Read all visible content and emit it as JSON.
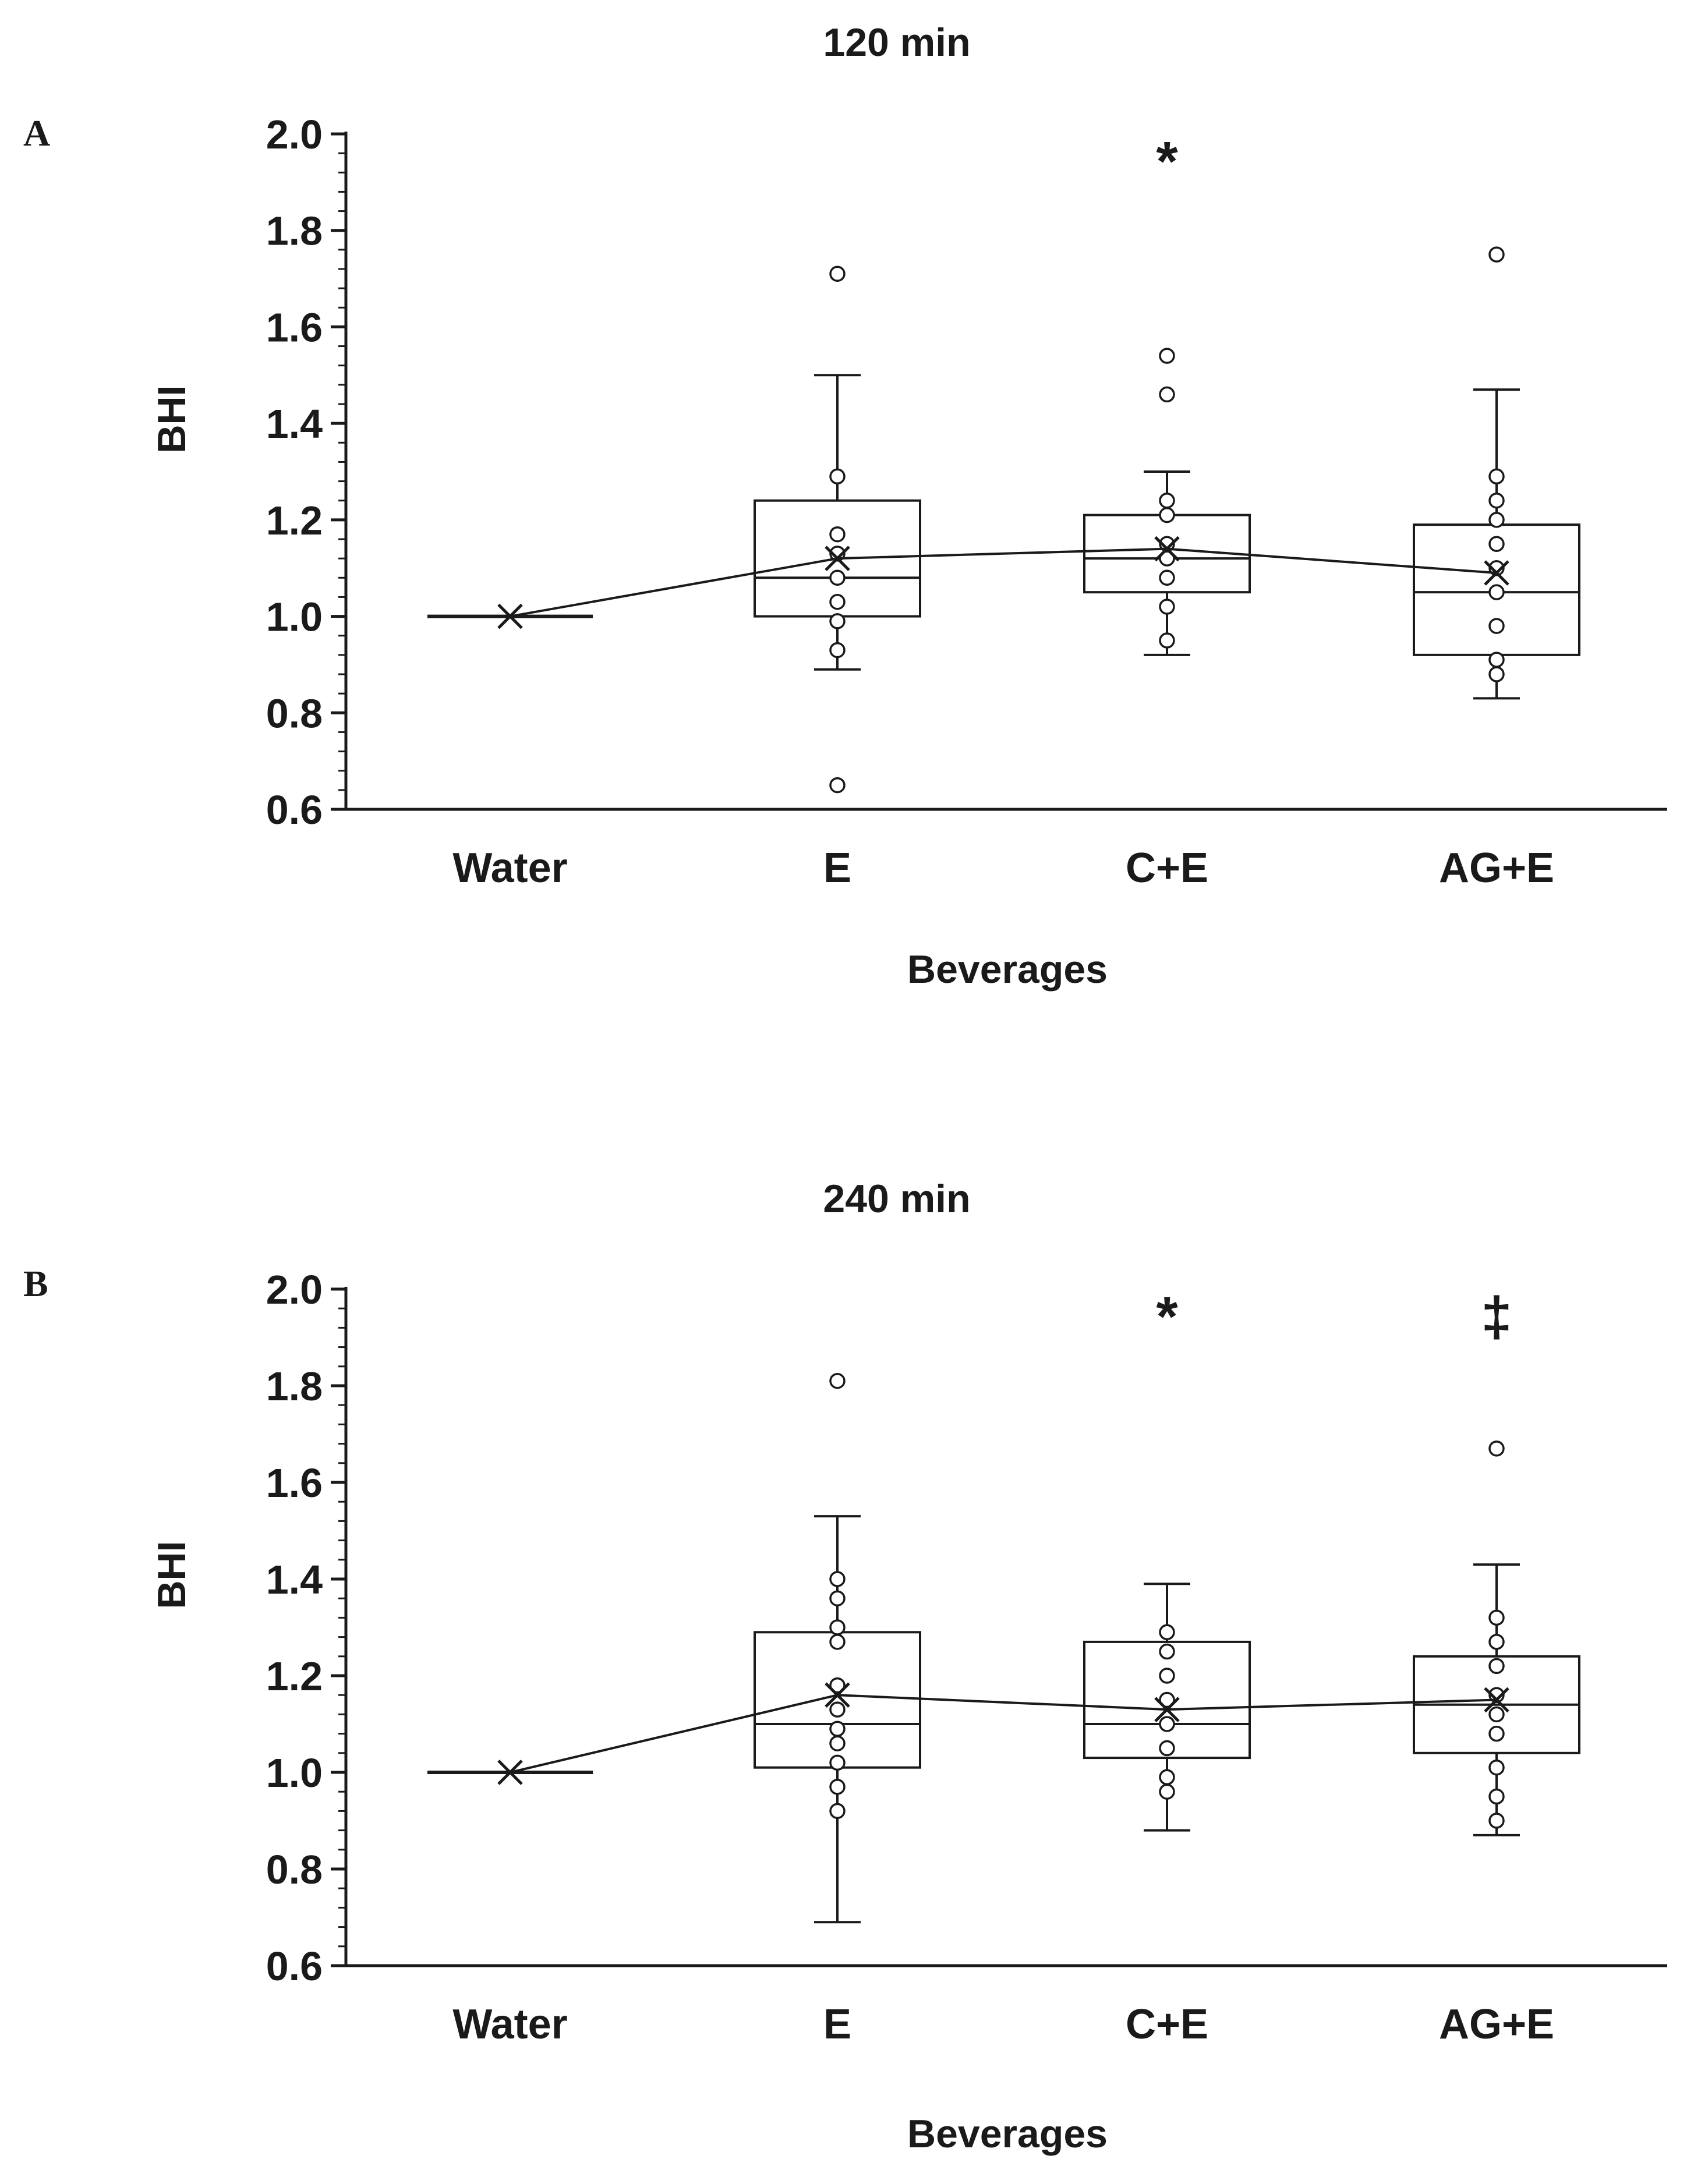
{
  "chart_data": [
    {
      "type": "box",
      "panel_label": "A",
      "title": "120 min",
      "xlabel": "Beverages",
      "ylabel": "BHI",
      "ylim": [
        0.6,
        2.0
      ],
      "yticks": [
        "0.6",
        "0.8",
        "1.0",
        "1.2",
        "1.4",
        "1.6",
        "1.8",
        "2.0"
      ],
      "categories": [
        "Water",
        "E",
        "C+E",
        "AG+E"
      ],
      "significance": [
        "",
        "",
        "*",
        ""
      ],
      "boxes": [
        {
          "category": "Water",
          "whisker_low": 1.0,
          "q1": 1.0,
          "median": 1.0,
          "q3": 1.0,
          "whisker_high": 1.0,
          "mean": 1.0,
          "points": []
        },
        {
          "category": "E",
          "whisker_low": 0.89,
          "q1": 1.0,
          "median": 1.08,
          "q3": 1.24,
          "whisker_high": 1.5,
          "mean": 1.12,
          "points": [
            1.71,
            1.29,
            1.17,
            1.13,
            1.08,
            1.03,
            0.99,
            0.93,
            0.65
          ]
        },
        {
          "category": "C+E",
          "whisker_low": 0.92,
          "q1": 1.05,
          "median": 1.12,
          "q3": 1.21,
          "whisker_high": 1.3,
          "mean": 1.14,
          "points": [
            1.54,
            1.46,
            1.24,
            1.21,
            1.15,
            1.12,
            1.08,
            1.02,
            0.95
          ]
        },
        {
          "category": "AG+E",
          "whisker_low": 0.83,
          "q1": 0.92,
          "median": 1.05,
          "q3": 1.19,
          "whisker_high": 1.47,
          "mean": 1.09,
          "points": [
            1.75,
            1.29,
            1.24,
            1.2,
            1.15,
            1.1,
            1.05,
            0.98,
            0.91,
            0.88
          ]
        }
      ],
      "mean_line": [
        1.0,
        1.12,
        1.14,
        1.09
      ]
    },
    {
      "type": "box",
      "panel_label": "B",
      "title": "240 min",
      "xlabel": "Beverages",
      "ylabel": "BHI",
      "ylim": [
        0.6,
        2.0
      ],
      "yticks": [
        "0.6",
        "0.8",
        "1.0",
        "1.2",
        "1.4",
        "1.6",
        "1.8",
        "2.0"
      ],
      "categories": [
        "Water",
        "E",
        "C+E",
        "AG+E"
      ],
      "significance": [
        "",
        "",
        "*",
        "‡"
      ],
      "boxes": [
        {
          "category": "Water",
          "whisker_low": 1.0,
          "q1": 1.0,
          "median": 1.0,
          "q3": 1.0,
          "whisker_high": 1.0,
          "mean": 1.0,
          "points": []
        },
        {
          "category": "E",
          "whisker_low": 0.69,
          "q1": 1.01,
          "median": 1.1,
          "q3": 1.29,
          "whisker_high": 1.53,
          "mean": 1.16,
          "points": [
            1.81,
            1.4,
            1.36,
            1.3,
            1.27,
            1.18,
            1.13,
            1.09,
            1.06,
            1.02,
            0.97,
            0.92
          ]
        },
        {
          "category": "C+E",
          "whisker_low": 0.88,
          "q1": 1.03,
          "median": 1.1,
          "q3": 1.27,
          "whisker_high": 1.39,
          "mean": 1.13,
          "points": [
            1.29,
            1.25,
            1.2,
            1.15,
            1.1,
            1.05,
            0.99,
            0.96
          ]
        },
        {
          "category": "AG+E",
          "whisker_low": 0.87,
          "q1": 1.04,
          "median": 1.14,
          "q3": 1.24,
          "whisker_high": 1.43,
          "mean": 1.15,
          "points": [
            1.67,
            1.32,
            1.27,
            1.22,
            1.16,
            1.12,
            1.08,
            1.01,
            0.95,
            0.9
          ]
        }
      ],
      "mean_line": [
        1.0,
        1.16,
        1.13,
        1.15
      ]
    }
  ]
}
